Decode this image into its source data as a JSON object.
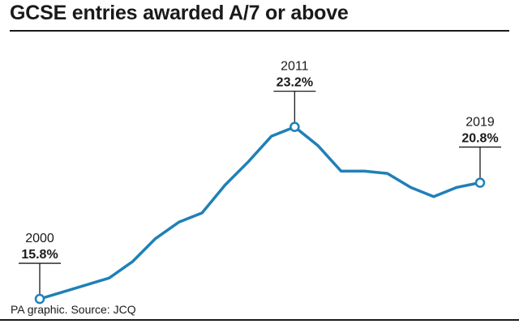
{
  "title": "GCSE entries awarded A/7 or above",
  "source": "PA graphic. Source: JCQ",
  "colors": {
    "line": "#1f80b8",
    "text": "#1a1a1a",
    "marker_fill": "#ffffff"
  },
  "chart_data": {
    "type": "line",
    "title": "GCSE entries awarded A/7 or above",
    "xlabel": "",
    "ylabel": "",
    "x": [
      2000,
      2001,
      2002,
      2003,
      2004,
      2005,
      2006,
      2007,
      2008,
      2009,
      2010,
      2011,
      2012,
      2013,
      2014,
      2015,
      2016,
      2017,
      2018,
      2019
    ],
    "series": [
      {
        "values": [
          15.8,
          16.1,
          16.4,
          16.7,
          17.4,
          18.4,
          19.1,
          19.5,
          20.7,
          21.7,
          22.8,
          23.2,
          22.4,
          21.3,
          21.3,
          21.2,
          20.6,
          20.2,
          20.6,
          20.8
        ]
      }
    ],
    "xlim": [
      2000,
      2019
    ],
    "ylim": [
      15.0,
      25.0
    ],
    "grid": false,
    "legend": "none",
    "annotations": [
      {
        "year": "2000",
        "value": "15.8%",
        "x": 2000,
        "y": 15.8
      },
      {
        "year": "2011",
        "value": "23.2%",
        "x": 2011,
        "y": 23.2
      },
      {
        "year": "2019",
        "value": "20.8%",
        "x": 2019,
        "y": 20.8
      }
    ]
  }
}
